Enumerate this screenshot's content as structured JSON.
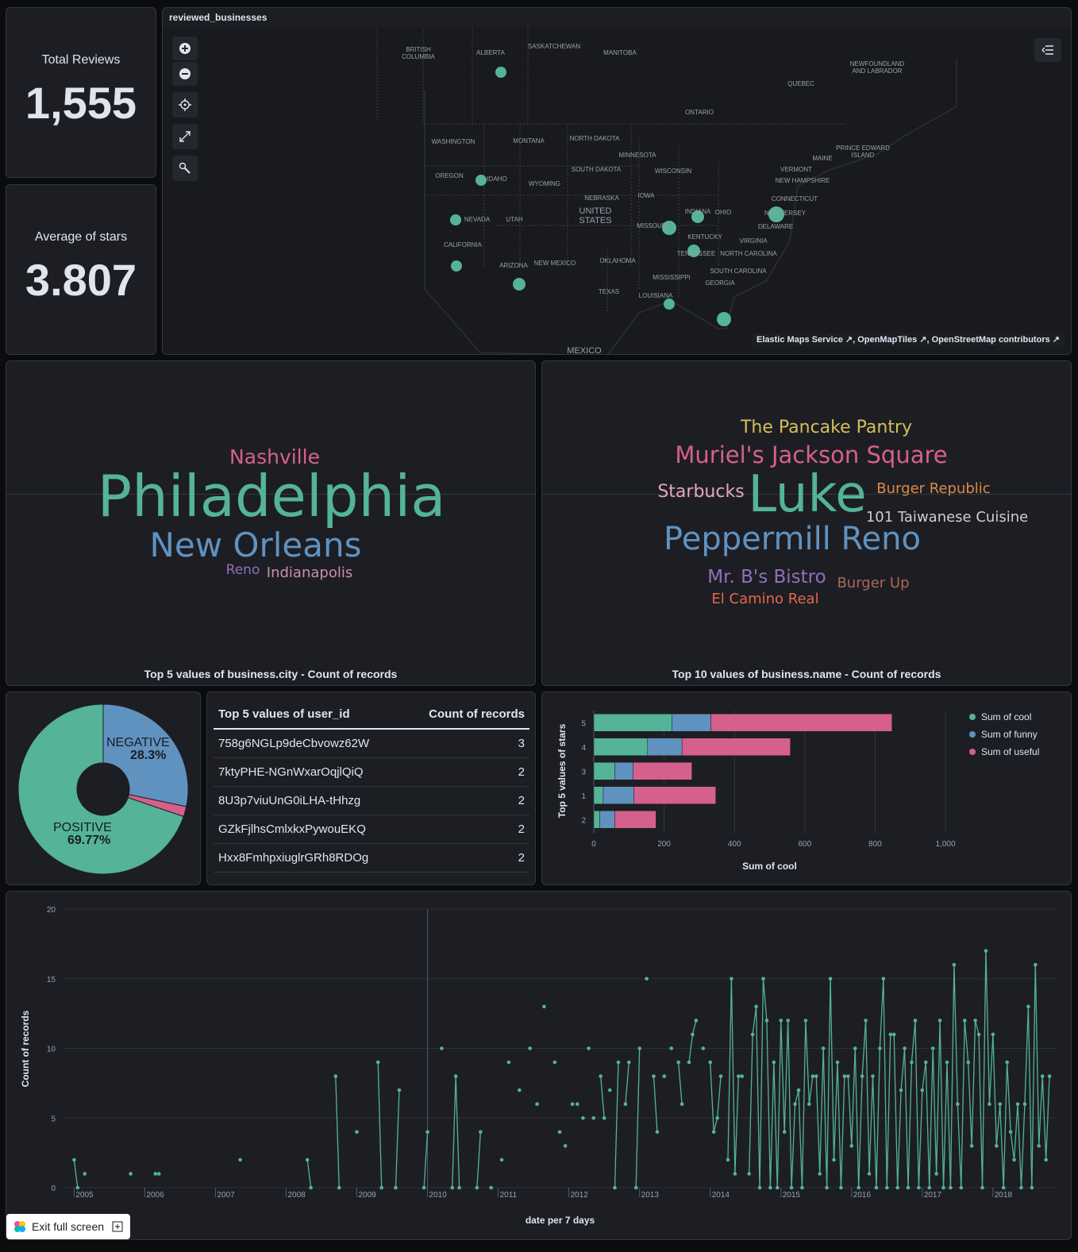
{
  "metrics": {
    "total_reviews": {
      "label": "Total Reviews",
      "value": "1,555"
    },
    "avg_stars": {
      "label": "Average of stars",
      "value": "3.807"
    }
  },
  "map": {
    "title": "reviewed_businesses",
    "attribution": [
      "Elastic Maps Service",
      "OpenMapTiles",
      "OpenStreetMap contributors"
    ],
    "regions": [
      "BRITISH COLUMBIA",
      "ALBERTA",
      "SASKATCHEWAN",
      "MANITOBA",
      "NEWFOUNDLAND AND LABRADOR",
      "QUEBEC",
      "ONTARIO",
      "WASHINGTON",
      "MONTANA",
      "NORTH DAKOTA",
      "MINNESOTA",
      "PRINCE EDWARD ISLAND",
      "MAINE",
      "OREGON",
      "IDAHO",
      "SOUTH DAKOTA",
      "WISCONSIN",
      "VERMONT",
      "NEW HAMPSHIRE",
      "WYOMING",
      "NEBRASKA",
      "IOWA",
      "CONNECTICUT",
      "NEVADA",
      "UTAH",
      "UNITED STATES",
      "INDIANA",
      "OHIO",
      "NEW JERSEY",
      "MISSOURI",
      "DELAWARE",
      "CALIFORNIA",
      "KENTUCKY",
      "VIRGINIA",
      "ARIZONA",
      "NEW MEXICO",
      "OKLAHOMA",
      "TENNESSEE",
      "NORTH CAROLINA",
      "SOUTH CAROLINA",
      "MISSISSIPPI",
      "GEORGIA",
      "TEXAS",
      "LOUISIANA",
      "MEXICO"
    ],
    "point_color": "#54b399"
  },
  "city_cloud": {
    "title": "Top 5 values of business.city - Count of records",
    "words": [
      "Nashville",
      "Philadelphia",
      "New Orleans",
      "Reno",
      "Indianapolis"
    ],
    "colors": [
      "#d6608d",
      "#54b399",
      "#6092c0",
      "#9170b8",
      "#ca8eae"
    ]
  },
  "name_cloud": {
    "title": "Top 10 values of business.name - Count of records",
    "words": [
      "The Pancake Pantry",
      "Muriel's Jackson Square",
      "Starbucks",
      "Luke",
      "Burger Republic",
      "101 Taiwanese Cuisine",
      "Peppermill Reno",
      "Mr. B's Bistro",
      "Burger Up",
      "El Camino Real"
    ],
    "colors": [
      "#d6bf57",
      "#d6608d",
      "#e7a6b8",
      "#54b399",
      "#da8b45",
      "#d6ccc2",
      "#6092c0",
      "#9170b8",
      "#aa6556",
      "#e7664c"
    ]
  },
  "pie": {
    "labels": [
      {
        "name": "NEGATIVE",
        "pct": "28.3%"
      },
      {
        "name": "POSITIVE",
        "pct": "69.77%"
      }
    ]
  },
  "user_table": {
    "col1": "Top 5 values of user_id",
    "col2": "Count of records",
    "rows": [
      {
        "id": "758g6NGLp9deCbvowz62W",
        "count": "3"
      },
      {
        "id": "7ktyPHE-NGnWxarOqjlQiQ",
        "count": "2"
      },
      {
        "id": "8U3p7viuUnG0iLHA-tHhzg",
        "count": "2"
      },
      {
        "id": "GZkFjlhsCmlxkxPywouEKQ",
        "count": "2"
      },
      {
        "id": "Hxx8FmhpxiuglrGRh8RDOg",
        "count": "2"
      }
    ]
  },
  "exit": {
    "label": "Exit full screen"
  },
  "chart_data": [
    {
      "type": "pie",
      "donut": true,
      "slices": [
        {
          "name": "NEGATIVE",
          "value": 28.3,
          "color": "#6092c0"
        },
        {
          "name": "",
          "value": 1.93,
          "color": "#d6608d"
        },
        {
          "name": "POSITIVE",
          "value": 69.77,
          "color": "#54b399"
        }
      ]
    },
    {
      "type": "bar",
      "orientation": "horizontal",
      "stacked": true,
      "categories": [
        "5",
        "4",
        "3",
        "1",
        "2"
      ],
      "series": [
        {
          "name": "Sum of cool",
          "color": "#54b399",
          "values": [
            222,
            153,
            60,
            27,
            17
          ]
        },
        {
          "name": "Sum of funny",
          "color": "#6092c0",
          "values": [
            111,
            98,
            52,
            87,
            43
          ]
        },
        {
          "name": "Sum of useful",
          "color": "#d6608d",
          "values": [
            515,
            308,
            167,
            233,
            117
          ]
        }
      ],
      "xlabel": "Sum of cool",
      "ylabel": "Top 5 values of stars",
      "xlim": [
        0,
        1000
      ],
      "xticks": [
        "0",
        "200",
        "400",
        "600",
        "800",
        "1,000"
      ],
      "legend": "right"
    },
    {
      "type": "line",
      "xlabel": "date per 7 days",
      "ylabel": "Count of records",
      "ylim": [
        0,
        20
      ],
      "yticks": [
        "0",
        "5",
        "10",
        "15",
        "20"
      ],
      "xticks": [
        "2005",
        "2006",
        "2007",
        "2008",
        "2009",
        "2010",
        "2011",
        "2012",
        "2013",
        "2014",
        "2015",
        "2016",
        "2017",
        "2018"
      ],
      "color": "#54b399",
      "points": [
        [
          2005.0,
          2
        ],
        [
          2005.05,
          0
        ],
        [
          2005.15,
          1
        ],
        [
          2005.8,
          1
        ],
        [
          2006.15,
          1
        ],
        [
          2006.2,
          1
        ],
        [
          2007.35,
          2
        ],
        [
          2008.3,
          2
        ],
        [
          2008.35,
          0
        ],
        [
          2008.7,
          8
        ],
        [
          2008.75,
          0
        ],
        [
          2009.0,
          4
        ],
        [
          2009.3,
          9
        ],
        [
          2009.35,
          0
        ],
        [
          2009.55,
          0
        ],
        [
          2009.6,
          7
        ],
        [
          2009.95,
          0
        ],
        [
          2010.0,
          4
        ],
        [
          2010.2,
          10
        ],
        [
          2010.35,
          0
        ],
        [
          2010.4,
          8
        ],
        [
          2010.45,
          0
        ],
        [
          2010.7,
          0
        ],
        [
          2010.75,
          4
        ],
        [
          2010.9,
          0
        ],
        [
          2011.05,
          2
        ],
        [
          2011.15,
          9
        ],
        [
          2011.3,
          7
        ],
        [
          2011.45,
          10
        ],
        [
          2011.55,
          6
        ],
        [
          2011.65,
          13
        ],
        [
          2011.8,
          9
        ],
        [
          2011.87,
          4
        ],
        [
          2011.95,
          3
        ],
        [
          2012.05,
          6
        ],
        [
          2012.12,
          6
        ],
        [
          2012.2,
          5
        ],
        [
          2012.28,
          10
        ],
        [
          2012.35,
          5
        ],
        [
          2012.45,
          8
        ],
        [
          2012.5,
          5
        ],
        [
          2012.58,
          7
        ],
        [
          2012.65,
          0
        ],
        [
          2012.7,
          9
        ],
        [
          2012.8,
          6
        ],
        [
          2012.85,
          9
        ],
        [
          2012.95,
          0
        ],
        [
          2013.0,
          10
        ],
        [
          2013.1,
          15
        ],
        [
          2013.2,
          8
        ],
        [
          2013.25,
          4
        ],
        [
          2013.35,
          8
        ],
        [
          2013.45,
          10
        ],
        [
          2013.55,
          9
        ],
        [
          2013.6,
          6
        ],
        [
          2013.7,
          9
        ],
        [
          2013.75,
          11
        ],
        [
          2013.8,
          12
        ],
        [
          2013.9,
          10
        ],
        [
          2014.0,
          9
        ],
        [
          2014.05,
          4
        ],
        [
          2014.1,
          5
        ],
        [
          2014.15,
          8
        ],
        [
          2014.25,
          2
        ],
        [
          2014.3,
          15
        ],
        [
          2014.35,
          1
        ],
        [
          2014.4,
          8
        ],
        [
          2014.45,
          8
        ],
        [
          2014.55,
          1
        ],
        [
          2014.6,
          11
        ],
        [
          2014.65,
          13
        ],
        [
          2014.7,
          0
        ],
        [
          2014.75,
          15
        ],
        [
          2014.8,
          12
        ],
        [
          2014.85,
          0
        ],
        [
          2014.9,
          9
        ],
        [
          2014.95,
          0
        ],
        [
          2015.0,
          12
        ],
        [
          2015.05,
          4
        ],
        [
          2015.1,
          12
        ],
        [
          2015.15,
          0
        ],
        [
          2015.2,
          6
        ],
        [
          2015.25,
          7
        ],
        [
          2015.3,
          0
        ],
        [
          2015.35,
          12
        ],
        [
          2015.4,
          6
        ],
        [
          2015.45,
          8
        ],
        [
          2015.5,
          8
        ],
        [
          2015.55,
          1
        ],
        [
          2015.6,
          10
        ],
        [
          2015.65,
          0
        ],
        [
          2015.7,
          15
        ],
        [
          2015.75,
          2
        ],
        [
          2015.8,
          9
        ],
        [
          2015.85,
          0
        ],
        [
          2015.9,
          8
        ],
        [
          2015.95,
          8
        ],
        [
          2016.0,
          3
        ],
        [
          2016.05,
          10
        ],
        [
          2016.1,
          0
        ],
        [
          2016.15,
          8
        ],
        [
          2016.2,
          12
        ],
        [
          2016.25,
          1
        ],
        [
          2016.3,
          8
        ],
        [
          2016.35,
          0
        ],
        [
          2016.4,
          10
        ],
        [
          2016.45,
          15
        ],
        [
          2016.5,
          0
        ],
        [
          2016.55,
          11
        ],
        [
          2016.6,
          11
        ],
        [
          2016.65,
          0
        ],
        [
          2016.7,
          7
        ],
        [
          2016.75,
          10
        ],
        [
          2016.8,
          0
        ],
        [
          2016.85,
          9
        ],
        [
          2016.9,
          12
        ],
        [
          2016.95,
          0
        ],
        [
          2017.0,
          7
        ],
        [
          2017.05,
          9
        ],
        [
          2017.1,
          0
        ],
        [
          2017.15,
          10
        ],
        [
          2017.2,
          1
        ],
        [
          2017.25,
          12
        ],
        [
          2017.3,
          0
        ],
        [
          2017.35,
          9
        ],
        [
          2017.4,
          0
        ],
        [
          2017.45,
          16
        ],
        [
          2017.5,
          6
        ],
        [
          2017.55,
          0
        ],
        [
          2017.6,
          12
        ],
        [
          2017.65,
          9
        ],
        [
          2017.7,
          3
        ],
        [
          2017.75,
          12
        ],
        [
          2017.8,
          11
        ],
        [
          2017.85,
          0
        ],
        [
          2017.9,
          17
        ],
        [
          2017.95,
          6
        ],
        [
          2018.0,
          11
        ],
        [
          2018.05,
          3
        ],
        [
          2018.1,
          6
        ],
        [
          2018.15,
          0
        ],
        [
          2018.2,
          9
        ],
        [
          2018.25,
          4
        ],
        [
          2018.3,
          2
        ],
        [
          2018.35,
          6
        ],
        [
          2018.4,
          0
        ],
        [
          2018.45,
          6
        ],
        [
          2018.5,
          13
        ],
        [
          2018.55,
          0
        ],
        [
          2018.6,
          16
        ],
        [
          2018.65,
          3
        ],
        [
          2018.7,
          8
        ],
        [
          2018.75,
          2
        ],
        [
          2018.8,
          8
        ]
      ]
    }
  ]
}
